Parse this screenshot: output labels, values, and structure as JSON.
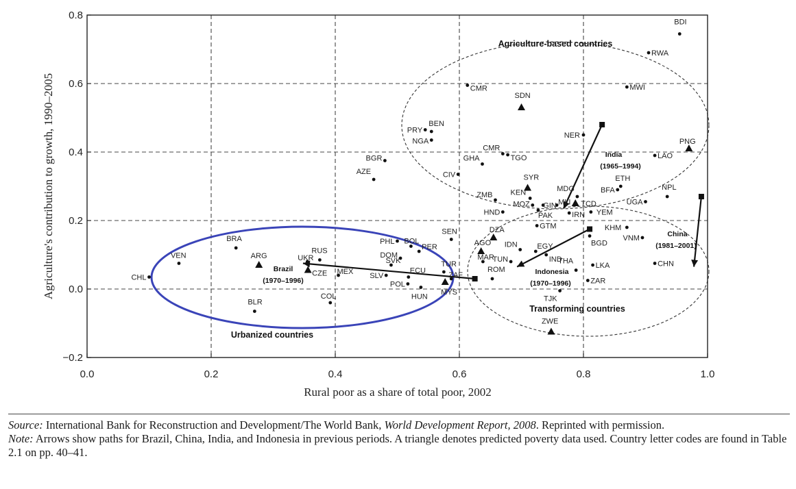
{
  "chart_data": {
    "type": "scatter",
    "xlabel": "Rural poor as a share of total poor, 2002",
    "ylabel": "Agriculture's contribution to growth, 1990–2005",
    "xlim": [
      0.0,
      1.0
    ],
    "ylim": [
      -0.2,
      0.8
    ],
    "x_ticks": [
      "0.0",
      "0.2",
      "0.4",
      "0.6",
      "0.8",
      "1.0"
    ],
    "y_ticks": [
      "0.8",
      "0.6",
      "0.4",
      "0.2",
      "0.0",
      "−0.2"
    ],
    "grid": "dashed",
    "points": [
      {
        "label": "BDI",
        "x": 0.955,
        "y": 0.745,
        "marker": "dot"
      },
      {
        "label": "RWA",
        "x": 0.905,
        "y": 0.69,
        "marker": "dot"
      },
      {
        "label": "MWI",
        "x": 0.87,
        "y": 0.59,
        "marker": "dot"
      },
      {
        "label": "CMR",
        "x": 0.613,
        "y": 0.595,
        "marker": "dot"
      },
      {
        "label": "SDN",
        "x": 0.7,
        "y": 0.53,
        "marker": "triangle"
      },
      {
        "label": "NER",
        "x": 0.8,
        "y": 0.45,
        "marker": "dot"
      },
      {
        "label": "PNG",
        "x": 0.97,
        "y": 0.41,
        "marker": "triangle"
      },
      {
        "label": "LAO",
        "x": 0.915,
        "y": 0.39,
        "marker": "dot"
      },
      {
        "label": "PRY",
        "x": 0.545,
        "y": 0.465,
        "marker": "dot"
      },
      {
        "label": "BEN",
        "x": 0.555,
        "y": 0.46,
        "marker": "dot"
      },
      {
        "label": "NGA",
        "x": 0.555,
        "y": 0.435,
        "marker": "dot"
      },
      {
        "label": "CMR",
        "x": 0.67,
        "y": 0.395,
        "marker": "dot"
      },
      {
        "label": "TGO",
        "x": 0.678,
        "y": 0.392,
        "marker": "dot"
      },
      {
        "label": "GHA",
        "x": 0.637,
        "y": 0.365,
        "marker": "dot"
      },
      {
        "label": "BGR",
        "x": 0.48,
        "y": 0.375,
        "marker": "dot"
      },
      {
        "label": "AZE",
        "x": 0.462,
        "y": 0.32,
        "marker": "dot"
      },
      {
        "label": "CIV",
        "x": 0.598,
        "y": 0.335,
        "marker": "dot"
      },
      {
        "label": "SYR",
        "x": 0.71,
        "y": 0.295,
        "marker": "triangle"
      },
      {
        "label": "ETH",
        "x": 0.86,
        "y": 0.3,
        "marker": "dot"
      },
      {
        "label": "BFA",
        "x": 0.855,
        "y": 0.29,
        "marker": "dot"
      },
      {
        "label": "NPL",
        "x": 0.935,
        "y": 0.27,
        "marker": "dot"
      },
      {
        "label": "MDG",
        "x": 0.79,
        "y": 0.27,
        "marker": "dot"
      },
      {
        "label": "ZMB",
        "x": 0.658,
        "y": 0.26,
        "marker": "dot"
      },
      {
        "label": "KEN",
        "x": 0.714,
        "y": 0.265,
        "marker": "dot"
      },
      {
        "label": "GIN",
        "x": 0.735,
        "y": 0.245,
        "marker": "dot"
      },
      {
        "label": "MLI",
        "x": 0.757,
        "y": 0.245,
        "marker": "dot"
      },
      {
        "label": "TCD",
        "x": 0.787,
        "y": 0.25,
        "marker": "triangle"
      },
      {
        "label": "UGA",
        "x": 0.9,
        "y": 0.255,
        "marker": "dot"
      },
      {
        "label": "MOZ",
        "x": 0.718,
        "y": 0.245,
        "marker": "dot"
      },
      {
        "label": "HND",
        "x": 0.67,
        "y": 0.225,
        "marker": "dot"
      },
      {
        "label": "PAK",
        "x": 0.727,
        "y": 0.23,
        "marker": "dot"
      },
      {
        "label": "IRN",
        "x": 0.777,
        "y": 0.222,
        "marker": "dot"
      },
      {
        "label": "YEM",
        "x": 0.812,
        "y": 0.225,
        "marker": "dot"
      },
      {
        "label": "KHM",
        "x": 0.87,
        "y": 0.18,
        "marker": "dot"
      },
      {
        "label": "GTM",
        "x": 0.725,
        "y": 0.185,
        "marker": "dot"
      },
      {
        "label": "SEN",
        "x": 0.587,
        "y": 0.145,
        "marker": "dot"
      },
      {
        "label": "DZA",
        "x": 0.655,
        "y": 0.15,
        "marker": "triangle"
      },
      {
        "label": "AGO",
        "x": 0.635,
        "y": 0.11,
        "marker": "triangle"
      },
      {
        "label": "PHL",
        "x": 0.5,
        "y": 0.14,
        "marker": "dot"
      },
      {
        "label": "BOL",
        "x": 0.522,
        "y": 0.125,
        "marker": "dot"
      },
      {
        "label": "PER",
        "x": 0.535,
        "y": 0.11,
        "marker": "dot"
      },
      {
        "label": "DOM",
        "x": 0.505,
        "y": 0.09,
        "marker": "dot"
      },
      {
        "label": "IDN",
        "x": 0.698,
        "y": 0.115,
        "marker": "dot"
      },
      {
        "label": "EGY",
        "x": 0.723,
        "y": 0.11,
        "marker": "dot"
      },
      {
        "label": "IND",
        "x": 0.74,
        "y": 0.1,
        "marker": "dot"
      },
      {
        "label": "BGD",
        "x": 0.81,
        "y": 0.155,
        "marker": "dot"
      },
      {
        "label": "VNM",
        "x": 0.895,
        "y": 0.15,
        "marker": "dot"
      },
      {
        "label": "CHN",
        "x": 0.915,
        "y": 0.075,
        "marker": "dot"
      },
      {
        "label": "MAR",
        "x": 0.638,
        "y": 0.08,
        "marker": "dot"
      },
      {
        "label": "SVK",
        "x": 0.49,
        "y": 0.07,
        "marker": "dot"
      },
      {
        "label": "TUN",
        "x": 0.683,
        "y": 0.08,
        "marker": "dot"
      },
      {
        "label": "THA",
        "x": 0.788,
        "y": 0.055,
        "marker": "dot"
      },
      {
        "label": "LKA",
        "x": 0.815,
        "y": 0.07,
        "marker": "dot"
      },
      {
        "label": "TUR",
        "x": 0.575,
        "y": 0.05,
        "marker": "dot"
      },
      {
        "label": "ROM",
        "x": 0.653,
        "y": 0.03,
        "marker": "dot"
      },
      {
        "label": "ZAR",
        "x": 0.807,
        "y": 0.025,
        "marker": "dot"
      },
      {
        "label": "SLV",
        "x": 0.482,
        "y": 0.04,
        "marker": "dot"
      },
      {
        "label": "ECU",
        "x": 0.518,
        "y": 0.035,
        "marker": "dot"
      },
      {
        "label": "POL",
        "x": 0.517,
        "y": 0.015,
        "marker": "dot"
      },
      {
        "label": "ZAF",
        "x": 0.587,
        "y": 0.03,
        "marker": "dot"
      },
      {
        "label": "MYS",
        "x": 0.577,
        "y": 0.02,
        "marker": "triangle"
      },
      {
        "label": "HUN",
        "x": 0.538,
        "y": 0.005,
        "marker": "dot"
      },
      {
        "label": "TJK",
        "x": 0.762,
        "y": -0.005,
        "marker": "dot"
      },
      {
        "label": "ZWE",
        "x": 0.748,
        "y": -0.125,
        "marker": "triangle"
      },
      {
        "label": "BRA",
        "x": 0.24,
        "y": 0.12,
        "marker": "dot"
      },
      {
        "label": "VEN",
        "x": 0.148,
        "y": 0.075,
        "marker": "dot"
      },
      {
        "label": "CHL",
        "x": 0.1,
        "y": 0.035,
        "marker": "dot"
      },
      {
        "label": "ARG",
        "x": 0.277,
        "y": 0.07,
        "marker": "triangle"
      },
      {
        "label": "RUS",
        "x": 0.375,
        "y": 0.085,
        "marker": "dot"
      },
      {
        "label": "UKR",
        "x": 0.355,
        "y": 0.08,
        "marker": "dot"
      },
      {
        "label": "CZE",
        "x": 0.356,
        "y": 0.055,
        "marker": "triangle"
      },
      {
        "label": "MEX",
        "x": 0.405,
        "y": 0.04,
        "marker": "dot"
      },
      {
        "label": "COL",
        "x": 0.392,
        "y": -0.04,
        "marker": "dot"
      },
      {
        "label": "BLR",
        "x": 0.27,
        "y": -0.065,
        "marker": "dot"
      }
    ],
    "paths": [
      {
        "name": "Brazil",
        "period": "(1970–1996)",
        "from": [
          0.625,
          0.03
        ],
        "to": [
          0.348,
          0.075
        ]
      },
      {
        "name": "India",
        "period": "(1965–1994)",
        "from": [
          0.83,
          0.48
        ],
        "to": [
          0.768,
          0.235
        ]
      },
      {
        "name": "Indonesia",
        "period": "(1970–1996)",
        "from": [
          0.81,
          0.175
        ],
        "to": [
          0.693,
          0.065
        ]
      },
      {
        "name": "China",
        "period": "(1981–2001)",
        "from": [
          0.99,
          0.27
        ],
        "to": [
          0.978,
          0.065
        ]
      }
    ],
    "groups": [
      {
        "label": "Agriculture-based countries"
      },
      {
        "label": "Transforming countries"
      },
      {
        "label": "Urbanized countries"
      }
    ]
  },
  "footer": {
    "source_label": "Source:",
    "source_text": " International Bank for Reconstruction and Development/The World Bank, ",
    "source_title": "World Development Report, 2008",
    "source_tail": ". Reprinted with permission.",
    "note_label": "Note:",
    "note_text": " Arrows show paths for Brazil, China, India, and Indonesia in previous periods. A triangle denotes predicted poverty data used. Country letter codes are found in Table 2.1 on pp. 40–41."
  }
}
